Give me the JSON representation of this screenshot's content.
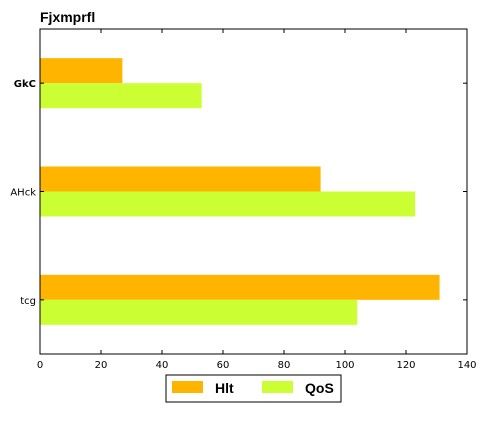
{
  "chart_data": {
    "type": "bar",
    "orientation": "horizontal",
    "title": "Fjxmprfl",
    "xlabel": "",
    "ylabel": "",
    "categories": [
      "GkC",
      "AHck",
      "tcg"
    ],
    "series": [
      {
        "name": "Hlt",
        "values": [
          27,
          92,
          131
        ],
        "color": "#ffb400"
      },
      {
        "name": "QoS",
        "values": [
          53,
          123,
          104
        ],
        "color": "#ccff33"
      }
    ],
    "xlim": [
      0,
      140
    ],
    "xticks": [
      0,
      20,
      40,
      60,
      80,
      100,
      120,
      140
    ],
    "grid": false,
    "legend_position": "bottom-center"
  }
}
